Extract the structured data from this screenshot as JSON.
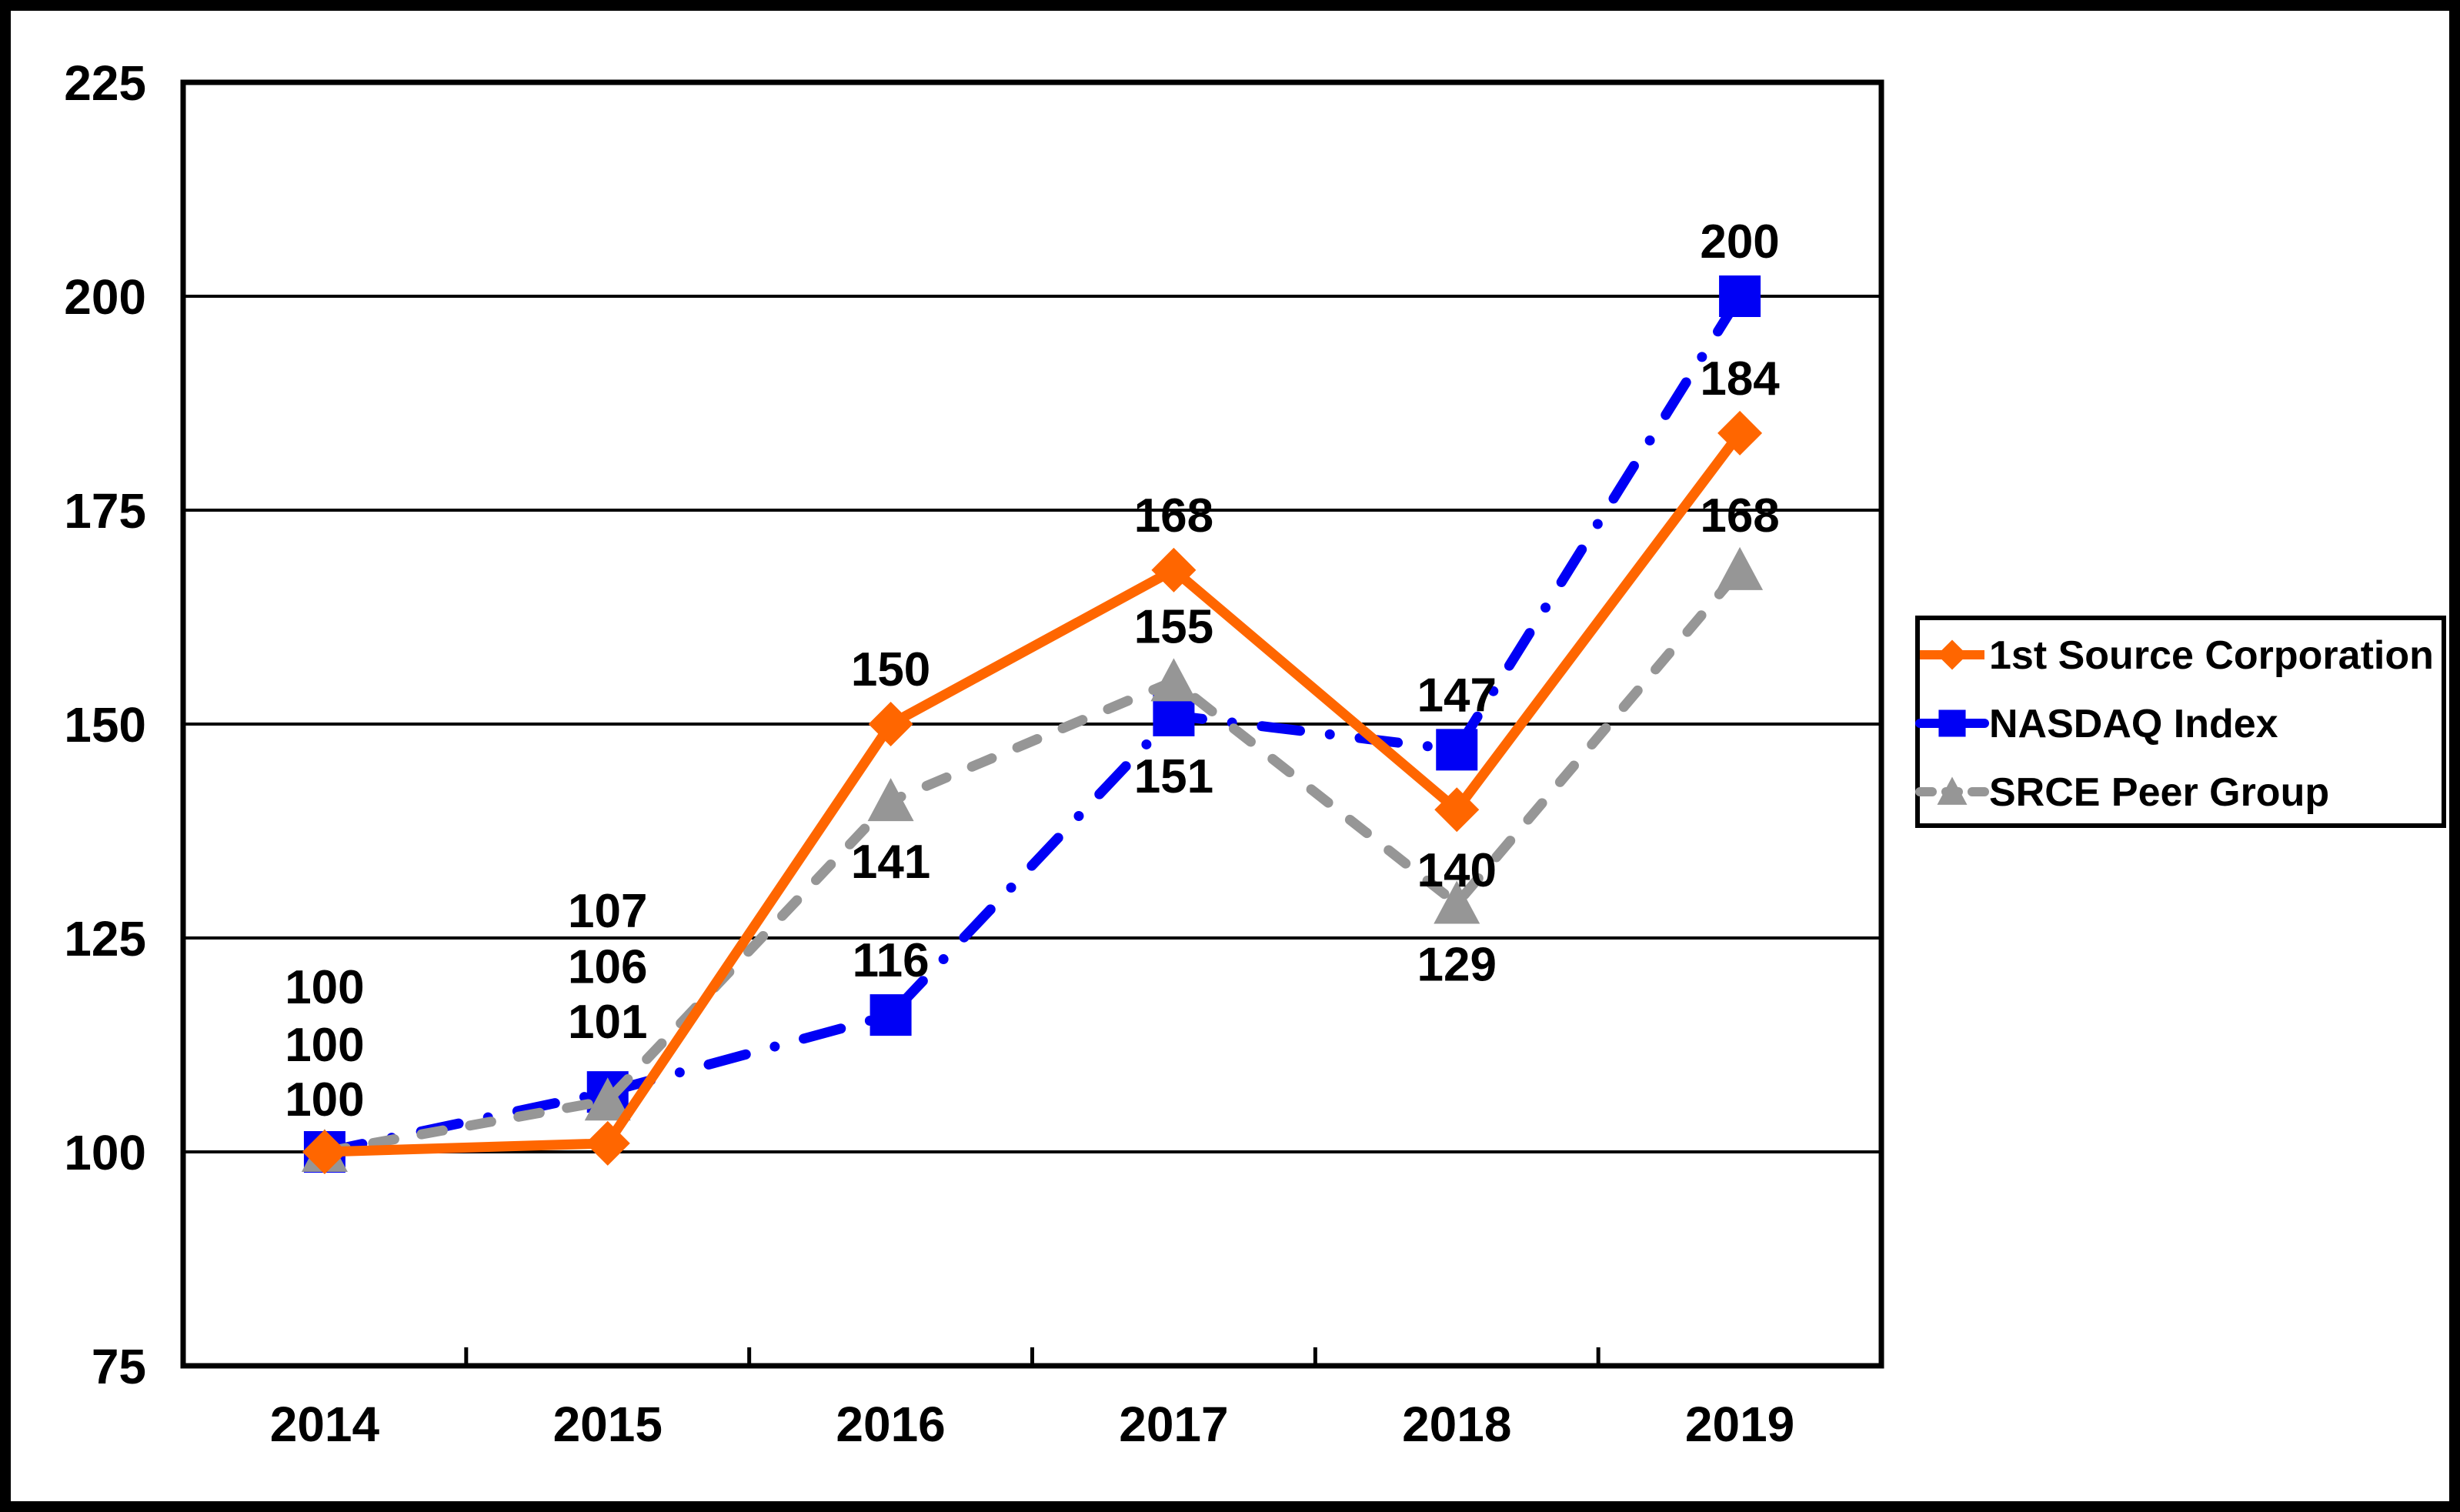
{
  "chart_data": {
    "type": "line",
    "title": "",
    "categories": [
      "2014",
      "2015",
      "2016",
      "2017",
      "2018",
      "2019"
    ],
    "series": [
      {
        "name": "1st Source Corporation",
        "values": [
          100,
          101,
          150,
          168,
          140,
          184
        ],
        "color": "#FF6600",
        "marker": "diamond",
        "line_style": "solid"
      },
      {
        "name": "NASDAQ Index",
        "values": [
          100,
          107,
          116,
          151,
          147,
          200
        ],
        "color": "#0000F5",
        "marker": "square",
        "line_style": "dash-dot"
      },
      {
        "name": "SRCE Peer Group",
        "values": [
          100,
          106,
          141,
          155,
          129,
          168
        ],
        "color": "#969696",
        "marker": "triangle",
        "line_style": "dashed"
      }
    ],
    "ylim": [
      75,
      225
    ],
    "yticks": [
      225,
      200,
      175,
      150,
      125,
      100,
      75
    ],
    "ytick_step": 25,
    "grid": "horizontal",
    "gridline_color": "#000000",
    "plot_border_color": "#000000",
    "outer_border_color": "#000000",
    "background_color": "#FFFFFF",
    "legend_position": "middle-right",
    "legend_border": true,
    "data_labels": true,
    "data_label_color": "#000000",
    "x_axis_tick_style": "between-categories-inside"
  }
}
